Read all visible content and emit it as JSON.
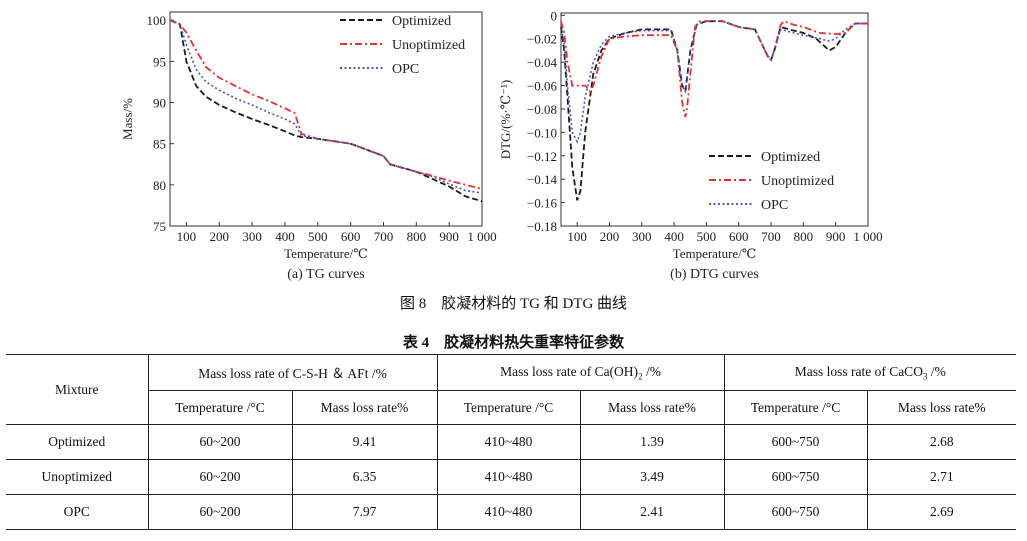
{
  "figure": {
    "caption": "图 8　胶凝材料的 TG 和 DTG 曲线",
    "tg": {
      "chart_data": {
        "type": "line",
        "title": "(a) TG curves",
        "xlabel": "Temperature/℃",
        "ylabel": "Mass/%",
        "xlim": [
          50,
          1000
        ],
        "ylim": [
          75,
          101
        ],
        "xticks": [
          100,
          200,
          300,
          400,
          500,
          600,
          700,
          800,
          900,
          1000
        ],
        "xtick_labels": [
          "100",
          "200",
          "300",
          "400",
          "500",
          "600",
          "700",
          "800",
          "900",
          "1 000"
        ],
        "yticks": [
          75,
          80,
          85,
          90,
          95,
          100
        ],
        "ytick_labels": [
          "75",
          "80",
          "85",
          "90",
          "95",
          "100"
        ],
        "legend_position": "top-right",
        "series": [
          {
            "name": "Optimized",
            "style": "dash",
            "color": "#1a1a1a",
            "x": [
              50,
              80,
              100,
              130,
              160,
              200,
              250,
              300,
              350,
              400,
              430,
              450,
              500,
              600,
              700,
              720,
              800,
              850,
              900,
              950,
              1000
            ],
            "y": [
              100,
              99.5,
              95,
              92,
              90.7,
              89.7,
              88.8,
              88,
              87.3,
              86.5,
              86,
              85.8,
              85.6,
              85,
              83.5,
              82.5,
              81.6,
              80.7,
              79.8,
              78.6,
              78
            ]
          },
          {
            "name": "Unoptimized",
            "style": "dashdot",
            "color": "#e53030",
            "x": [
              50,
              80,
              100,
              130,
              160,
              200,
              250,
              300,
              350,
              400,
              430,
              450,
              500,
              600,
              700,
              720,
              800,
              850,
              900,
              950,
              1000
            ],
            "y": [
              100,
              99.5,
              98.5,
              96.3,
              94.3,
              93,
              92,
              91,
              90.2,
              89.3,
              88.7,
              86.2,
              85.6,
              85,
              83.5,
              82.5,
              81.6,
              81.1,
              80.5,
              80,
              79.5
            ]
          },
          {
            "name": "OPC",
            "style": "dot",
            "color": "#4455cc",
            "x": [
              50,
              80,
              100,
              130,
              160,
              200,
              250,
              300,
              350,
              400,
              430,
              450,
              500,
              600,
              700,
              720,
              800,
              850,
              900,
              950,
              1000
            ],
            "y": [
              100,
              99.5,
              97,
              94,
              92.5,
              91.5,
              90.5,
              89.7,
              88.8,
              88,
              87.4,
              86,
              85.6,
              85,
              83.5,
              82.5,
              81.6,
              81,
              80.1,
              79.3,
              79
            ]
          }
        ]
      }
    },
    "dtg": {
      "chart_data": {
        "type": "line",
        "title": "(b) DTG curves",
        "xlabel": "Temperature/℃",
        "ylabel": "DTG/(%·℃⁻¹)",
        "xlim": [
          50,
          1000
        ],
        "ylim": [
          -0.18,
          0.002
        ],
        "xticks": [
          100,
          200,
          300,
          400,
          500,
          600,
          700,
          800,
          900,
          1000
        ],
        "xtick_labels": [
          "100",
          "200",
          "300",
          "400",
          "500",
          "600",
          "700",
          "800",
          "900",
          "1 000"
        ],
        "yticks": [
          0,
          -0.02,
          -0.04,
          -0.06,
          -0.08,
          -0.1,
          -0.12,
          -0.14,
          -0.16,
          -0.18
        ],
        "ytick_labels": [
          "0",
          "−0.02",
          "−0.04",
          "−0.06",
          "−0.08",
          "−0.10",
          "−0.12",
          "−0.14",
          "−0.16",
          "−0.18"
        ],
        "legend_position": "bottom-right",
        "series": [
          {
            "name": "Optimized",
            "style": "dash",
            "color": "#1a1a1a",
            "x": [
              50,
              60,
              70,
              85,
              100,
              110,
              125,
              150,
              175,
              200,
              250,
              300,
              350,
              390,
              410,
              425,
              435,
              450,
              470,
              500,
              550,
              600,
              650,
              690,
              700,
              710,
              730,
              770,
              800,
              840,
              880,
              900,
              930,
              960,
              1000
            ],
            "y": [
              -0.01,
              -0.03,
              -0.07,
              -0.13,
              -0.158,
              -0.15,
              -0.1,
              -0.05,
              -0.03,
              -0.02,
              -0.015,
              -0.012,
              -0.012,
              -0.012,
              -0.03,
              -0.06,
              -0.065,
              -0.03,
              -0.008,
              -0.005,
              -0.005,
              -0.01,
              -0.012,
              -0.035,
              -0.038,
              -0.03,
              -0.01,
              -0.013,
              -0.015,
              -0.02,
              -0.03,
              -0.027,
              -0.015,
              -0.007,
              -0.007
            ]
          },
          {
            "name": "Unoptimized",
            "style": "dashdot",
            "color": "#e53030",
            "x": [
              50,
              60,
              70,
              85,
              100,
              110,
              125,
              140,
              150,
              175,
              200,
              250,
              300,
              350,
              390,
              410,
              425,
              435,
              440,
              450,
              465,
              480,
              500,
              550,
              600,
              650,
              690,
              700,
              710,
              730,
              740,
              770,
              800,
              850,
              900,
              930,
              960,
              1000
            ],
            "y": [
              -0.005,
              -0.015,
              -0.04,
              -0.06,
              -0.06,
              -0.06,
              -0.06,
              -0.065,
              -0.06,
              -0.035,
              -0.02,
              -0.018,
              -0.017,
              -0.017,
              -0.017,
              -0.03,
              -0.075,
              -0.087,
              -0.08,
              -0.05,
              -0.01,
              -0.005,
              -0.005,
              -0.005,
              -0.01,
              -0.012,
              -0.035,
              -0.038,
              -0.03,
              -0.008,
              -0.005,
              -0.008,
              -0.01,
              -0.015,
              -0.016,
              -0.015,
              -0.007,
              -0.007
            ]
          },
          {
            "name": "OPC",
            "style": "dot",
            "color": "#4455cc",
            "x": [
              50,
              60,
              70,
              85,
              100,
              110,
              125,
              150,
              175,
              200,
              250,
              300,
              350,
              390,
              410,
              425,
              435,
              450,
              470,
              500,
              550,
              600,
              650,
              690,
              700,
              710,
              730,
              770,
              800,
              850,
              880,
              900,
              930,
              960,
              1000
            ],
            "y": [
              -0.008,
              -0.025,
              -0.06,
              -0.1,
              -0.108,
              -0.1,
              -0.07,
              -0.04,
              -0.025,
              -0.018,
              -0.015,
              -0.013,
              -0.013,
              -0.013,
              -0.03,
              -0.06,
              -0.065,
              -0.03,
              -0.008,
              -0.005,
              -0.005,
              -0.01,
              -0.012,
              -0.035,
              -0.038,
              -0.03,
              -0.012,
              -0.015,
              -0.017,
              -0.02,
              -0.022,
              -0.02,
              -0.012,
              -0.007,
              -0.007
            ]
          }
        ]
      }
    }
  },
  "table": {
    "caption": "表 4　胶凝材料热失重率特征参数",
    "header_mixture": "Mixture",
    "groups": [
      {
        "prefix": "Mass loss rate of C-S-H ＆ AFt /%",
        "formula_sub": "",
        "suffix": ""
      },
      {
        "prefix": "Mass loss rate of Ca(OH)",
        "formula_sub": "2",
        "suffix": " /%"
      },
      {
        "prefix": "Mass loss rate of CaCO",
        "formula_sub": "3",
        "suffix": " /%"
      }
    ],
    "subheaders": [
      "Temperature /°C",
      "Mass loss rate%",
      "Temperature /°C",
      "Mass loss rate%",
      "Temperature /°C",
      "Mass loss rate%"
    ],
    "rows": [
      {
        "name": "Optimized",
        "cells": [
          "60~200",
          "9.41",
          "410~480",
          "1.39",
          "600~750",
          "2.68"
        ]
      },
      {
        "name": "Unoptimized",
        "cells": [
          "60~200",
          "6.35",
          "410~480",
          "3.49",
          "600~750",
          "2.71"
        ]
      },
      {
        "name": "OPC",
        "cells": [
          "60~200",
          "7.97",
          "410~480",
          "2.41",
          "600~750",
          "2.69"
        ]
      }
    ]
  }
}
